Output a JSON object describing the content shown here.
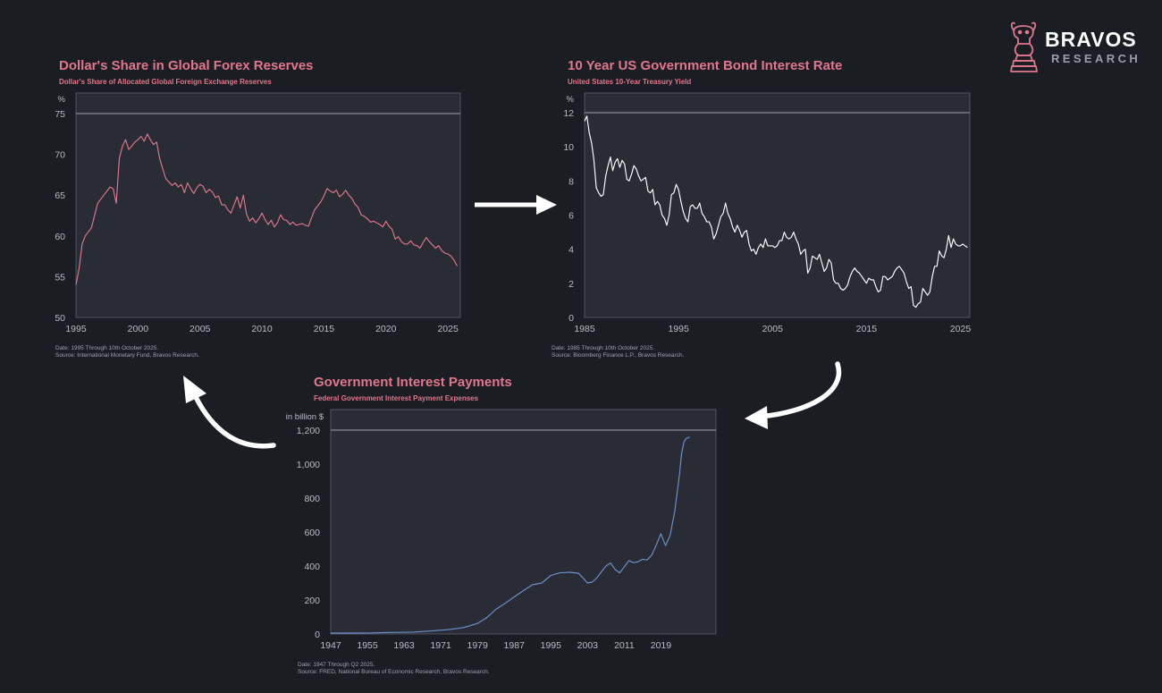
{
  "brand": {
    "name": "BRAVOS",
    "tagline": "RESEARCH",
    "accent": "#e0778c"
  },
  "colors": {
    "background": "#1b1d24",
    "panel": "#292c35",
    "title": "#e0778c",
    "line_reserves": "#e0778c",
    "line_yield": "#ffffff",
    "line_interest": "#6b93cf"
  },
  "charts": {
    "reserves": {
      "title": "Dollar's Share in Global Forex Reserves",
      "subtitle": "Dollar's Share of Allocated Global Foreign Exchange Reserves",
      "unit": "%",
      "date_note": "Date: 1995 Through 10th October 2025.",
      "source_note": "Source: International Monetary Fund, Bravos Research."
    },
    "yield": {
      "title": "10 Year US Government Bond Interest Rate",
      "subtitle": "United States 10-Year Treasury Yield",
      "unit": "%",
      "date_note": "Date: 1985 Through 10th October 2025.",
      "source_note": "Source: Bloomberg Finance L.P., Bravos Research."
    },
    "interest": {
      "title": "Government Interest Payments",
      "subtitle": "Federal Government Interest Payment Expenses",
      "unit": "in billion $",
      "date_note": "Date: 1947 Through Q2 2025.",
      "source_note": "Source: FRED, National Bureau of Economic Research, Bravos Research."
    }
  },
  "flow_arrows": [
    "reserves-to-yield-arrow",
    "yield-to-interest-arrow",
    "interest-to-reserves-arrow"
  ],
  "chart_data": [
    {
      "type": "line",
      "title": "Dollar's Share in Global Forex Reserves",
      "subtitle": "Dollar's Share of Allocated Global Foreign Exchange Reserves",
      "ylabel": "%",
      "xlim": [
        1995,
        2026
      ],
      "ylim": [
        50,
        75
      ],
      "xticks": [
        1995,
        2000,
        2005,
        2010,
        2015,
        2020,
        2025
      ],
      "yticks": [
        50,
        55,
        60,
        65,
        70,
        75
      ],
      "ytick_labels": [
        "50",
        "55",
        "60",
        "65",
        "70",
        "75"
      ],
      "grid": false,
      "series": [
        {
          "color": "#e0778c",
          "x": [
            1995.0,
            1995.25,
            1995.5,
            1995.75,
            1996.0,
            1996.25,
            1996.5,
            1996.75,
            1997.0,
            1997.25,
            1997.5,
            1997.75,
            1998.0,
            1998.25,
            1998.5,
            1998.75,
            1999.0,
            1999.25,
            1999.5,
            1999.75,
            2000.0,
            2000.25,
            2000.5,
            2000.75,
            2001.0,
            2001.25,
            2001.5,
            2001.75,
            2002.0,
            2002.25,
            2002.5,
            2002.75,
            2003.0,
            2003.25,
            2003.5,
            2003.75,
            2004.0,
            2004.25,
            2004.5,
            2004.75,
            2005.0,
            2005.25,
            2005.5,
            2005.75,
            2006.0,
            2006.25,
            2006.5,
            2006.75,
            2007.0,
            2007.25,
            2007.5,
            2007.75,
            2008.0,
            2008.25,
            2008.5,
            2008.75,
            2009.0,
            2009.25,
            2009.5,
            2009.75,
            2010.0,
            2010.25,
            2010.5,
            2010.75,
            2011.0,
            2011.25,
            2011.5,
            2011.75,
            2012.0,
            2012.25,
            2012.5,
            2012.75,
            2013.0,
            2013.25,
            2013.5,
            2013.75,
            2014.0,
            2014.25,
            2014.5,
            2014.75,
            2015.0,
            2015.25,
            2015.5,
            2015.75,
            2016.0,
            2016.25,
            2016.5,
            2016.75,
            2017.0,
            2017.25,
            2017.5,
            2017.75,
            2018.0,
            2018.25,
            2018.5,
            2018.75,
            2019.0,
            2019.25,
            2019.5,
            2019.75,
            2020.0,
            2020.25,
            2020.5,
            2020.75,
            2021.0,
            2021.25,
            2021.5,
            2021.75,
            2022.0,
            2022.25,
            2022.5,
            2022.75,
            2023.0,
            2023.25,
            2023.5,
            2023.75,
            2024.0,
            2024.25,
            2024.5,
            2024.75,
            2025.0,
            2025.25,
            2025.5,
            2025.75
          ],
          "y": [
            54.0,
            56.0,
            59.0,
            60.0,
            60.5,
            61.0,
            62.5,
            64.0,
            64.5,
            65.0,
            65.5,
            66.0,
            65.8,
            64.0,
            69.5,
            71.0,
            71.8,
            70.6,
            71.0,
            71.5,
            71.8,
            72.2,
            71.6,
            72.5,
            71.8,
            71.2,
            71.5,
            69.5,
            68.2,
            67.0,
            66.6,
            66.2,
            66.5,
            66.0,
            66.3,
            65.3,
            66.5,
            65.8,
            65.2,
            65.9,
            66.3,
            66.1,
            65.3,
            65.7,
            65.4,
            64.7,
            64.9,
            63.8,
            63.8,
            63.2,
            62.8,
            63.8,
            64.8,
            63.4,
            65.0,
            62.7,
            61.8,
            62.2,
            61.6,
            62.1,
            62.8,
            62.0,
            61.4,
            61.9,
            61.1,
            61.6,
            62.6,
            62.0,
            61.9,
            61.4,
            61.7,
            61.3,
            61.4,
            61.5,
            61.3,
            61.2,
            62.2,
            63.2,
            63.7,
            64.2,
            64.9,
            65.8,
            65.5,
            65.3,
            65.6,
            64.8,
            65.1,
            65.6,
            65.0,
            64.6,
            63.9,
            63.5,
            62.6,
            62.4,
            62.1,
            61.7,
            61.8,
            61.6,
            61.4,
            61.1,
            61.8,
            61.2,
            60.8,
            59.6,
            59.9,
            59.3,
            59.0,
            59.0,
            59.4,
            58.9,
            58.8,
            58.5,
            59.2,
            59.8,
            59.3,
            58.9,
            58.5,
            58.8,
            58.2,
            57.9,
            57.8,
            57.5,
            57.0,
            56.3
          ]
        }
      ]
    },
    {
      "type": "line",
      "title": "10 Year US Government Bond Interest Rate",
      "subtitle": "United States 10-Year Treasury Yield",
      "ylabel": "%",
      "xlim": [
        1985,
        2026
      ],
      "ylim": [
        0,
        12
      ],
      "xticks": [
        1985,
        1995,
        2005,
        2015,
        2025
      ],
      "yticks": [
        0,
        2,
        4,
        6,
        8,
        10,
        12
      ],
      "ytick_labels": [
        "0",
        "2",
        "4",
        "6",
        "8",
        "10",
        "12"
      ],
      "grid": false,
      "series": [
        {
          "color": "#ffffff",
          "x": [
            1985.0,
            1985.25,
            1985.5,
            1985.75,
            1986.0,
            1986.25,
            1986.5,
            1986.75,
            1987.0,
            1987.25,
            1987.5,
            1987.75,
            1988.0,
            1988.25,
            1988.5,
            1988.75,
            1989.0,
            1989.25,
            1989.5,
            1989.75,
            1990.0,
            1990.25,
            1990.5,
            1990.75,
            1991.0,
            1991.25,
            1991.5,
            1991.75,
            1992.0,
            1992.25,
            1992.5,
            1992.75,
            1993.0,
            1993.25,
            1993.5,
            1993.75,
            1994.0,
            1994.25,
            1994.5,
            1994.75,
            1995.0,
            1995.25,
            1995.5,
            1995.75,
            1996.0,
            1996.25,
            1996.5,
            1996.75,
            1997.0,
            1997.25,
            1997.5,
            1997.75,
            1998.0,
            1998.25,
            1998.5,
            1998.75,
            1999.0,
            1999.25,
            1999.5,
            1999.75,
            2000.0,
            2000.25,
            2000.5,
            2000.75,
            2001.0,
            2001.25,
            2001.5,
            2001.75,
            2002.0,
            2002.25,
            2002.5,
            2002.75,
            2003.0,
            2003.25,
            2003.5,
            2003.75,
            2004.0,
            2004.25,
            2004.5,
            2004.75,
            2005.0,
            2005.25,
            2005.5,
            2005.75,
            2006.0,
            2006.25,
            2006.5,
            2006.75,
            2007.0,
            2007.25,
            2007.5,
            2007.75,
            2008.0,
            2008.25,
            2008.5,
            2008.75,
            2009.0,
            2009.25,
            2009.5,
            2009.75,
            2010.0,
            2010.25,
            2010.5,
            2010.75,
            2011.0,
            2011.25,
            2011.5,
            2011.75,
            2012.0,
            2012.25,
            2012.5,
            2012.75,
            2013.0,
            2013.25,
            2013.5,
            2013.75,
            2014.0,
            2014.25,
            2014.5,
            2014.75,
            2015.0,
            2015.25,
            2015.5,
            2015.75,
            2016.0,
            2016.25,
            2016.5,
            2016.75,
            2017.0,
            2017.25,
            2017.5,
            2017.75,
            2018.0,
            2018.25,
            2018.5,
            2018.75,
            2019.0,
            2019.25,
            2019.5,
            2019.75,
            2020.0,
            2020.25,
            2020.5,
            2020.75,
            2021.0,
            2021.25,
            2021.5,
            2021.75,
            2022.0,
            2022.25,
            2022.5,
            2022.75,
            2023.0,
            2023.25,
            2023.5,
            2023.75,
            2024.0,
            2024.25,
            2024.5,
            2024.75,
            2025.0,
            2025.25,
            2025.5,
            2025.75
          ],
          "y": [
            11.5,
            11.8,
            10.8,
            10.2,
            9.2,
            7.6,
            7.3,
            7.1,
            7.2,
            8.3,
            8.9,
            9.4,
            8.6,
            9.1,
            9.3,
            8.8,
            9.2,
            9.0,
            8.1,
            8.0,
            8.4,
            8.9,
            8.7,
            8.3,
            8.0,
            8.1,
            8.2,
            7.4,
            7.3,
            7.5,
            6.6,
            6.8,
            6.6,
            6.0,
            5.8,
            5.4,
            6.0,
            7.2,
            7.3,
            7.8,
            7.5,
            6.8,
            6.2,
            5.8,
            5.6,
            6.5,
            6.6,
            6.4,
            6.4,
            6.7,
            6.1,
            5.9,
            5.6,
            5.6,
            5.3,
            4.6,
            4.9,
            5.4,
            5.9,
            6.1,
            6.7,
            6.1,
            5.8,
            5.3,
            5.0,
            5.4,
            5.1,
            4.7,
            5.0,
            5.1,
            4.3,
            3.9,
            4.0,
            3.7,
            4.1,
            4.3,
            4.1,
            4.6,
            4.2,
            4.2,
            4.2,
            4.1,
            4.2,
            4.5,
            4.5,
            5.0,
            4.7,
            4.6,
            4.7,
            5.0,
            4.6,
            4.3,
            3.7,
            3.9,
            4.0,
            2.6,
            2.9,
            3.6,
            3.5,
            3.4,
            3.7,
            3.2,
            2.7,
            2.9,
            3.4,
            3.2,
            2.2,
            2.0,
            2.0,
            1.7,
            1.6,
            1.7,
            1.9,
            2.4,
            2.7,
            2.9,
            2.7,
            2.6,
            2.4,
            2.2,
            2.0,
            2.3,
            2.2,
            2.2,
            1.8,
            1.5,
            1.6,
            2.4,
            2.4,
            2.2,
            2.3,
            2.4,
            2.7,
            2.9,
            3.0,
            2.8,
            2.6,
            2.1,
            1.7,
            1.8,
            0.7,
            0.6,
            0.8,
            0.9,
            1.7,
            1.5,
            1.3,
            1.5,
            2.4,
            3.0,
            3.0,
            3.9,
            3.6,
            3.5,
            4.0,
            4.8,
            4.1,
            4.6,
            4.3,
            4.2,
            4.2,
            4.3,
            4.2,
            4.1
          ]
        }
      ]
    },
    {
      "type": "line",
      "title": "Government Interest Payments",
      "subtitle": "Federal Government Interest Payment Expenses",
      "ylabel": "in billion $",
      "xlim": [
        1947,
        2031
      ],
      "ylim": [
        0,
        1200
      ],
      "xticks": [
        1947,
        1955,
        1963,
        1971,
        1979,
        1987,
        1995,
        2003,
        2011,
        2019
      ],
      "yticks": [
        0,
        200,
        400,
        600,
        800,
        1000,
        1200
      ],
      "ytick_labels": [
        "0",
        "200",
        "400",
        "600",
        "800",
        "1,000",
        "1,200"
      ],
      "grid": false,
      "series": [
        {
          "color": "#6b93cf",
          "x": [
            1947,
            1950,
            1955,
            1960,
            1965,
            1970,
            1973,
            1976,
            1979,
            1981,
            1983,
            1985,
            1987,
            1989,
            1991,
            1993,
            1995,
            1997,
            1999,
            2001,
            2002,
            2003,
            2004,
            2005,
            2006,
            2007,
            2008,
            2009,
            2010,
            2011,
            2012,
            2013,
            2014,
            2015,
            2016,
            2017,
            2018,
            2019,
            2020,
            2021,
            2022,
            2023,
            2023.5,
            2024,
            2024.5,
            2025.25
          ],
          "y": [
            5,
            5,
            6,
            9,
            11,
            20,
            27,
            38,
            62,
            96,
            145,
            180,
            218,
            255,
            290,
            300,
            345,
            360,
            363,
            358,
            330,
            300,
            305,
            330,
            365,
            400,
            418,
            380,
            360,
            395,
            432,
            420,
            425,
            440,
            436,
            465,
            525,
            590,
            520,
            580,
            720,
            930,
            1060,
            1130,
            1150,
            1160
          ]
        }
      ]
    }
  ]
}
